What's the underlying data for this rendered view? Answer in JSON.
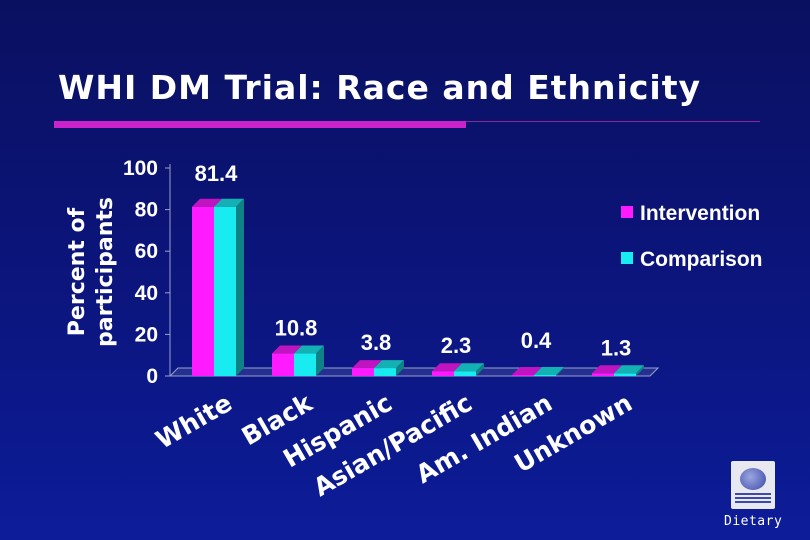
{
  "slide": {
    "title": "WHI DM Trial: Race and Ethnicity",
    "footer": "Dietary"
  },
  "logo": {
    "icon": "whi-logo-icon"
  },
  "colors": {
    "intervention": "#ff1aff",
    "comparison": "#19ecf0",
    "text": "#ffffff",
    "axis": "#9aa0c8"
  },
  "chart_data": {
    "type": "bar",
    "title": "",
    "ylabel": "Percent of participants",
    "xlabel": "",
    "ylim": [
      0,
      100
    ],
    "yticks": [
      0,
      20,
      40,
      60,
      80,
      100
    ],
    "categories": [
      "White",
      "Black",
      "Hispanic",
      "Asian/Pacific",
      "Am. Indian",
      "Unknown"
    ],
    "data_labels": [
      "81.4",
      "10.8",
      "3.8",
      "2.3",
      "0.4",
      "1.3"
    ],
    "series": [
      {
        "name": "Intervention",
        "values": [
          81.4,
          10.8,
          3.8,
          2.3,
          0.4,
          1.3
        ]
      },
      {
        "name": "Comparison",
        "values": [
          81.4,
          10.8,
          3.8,
          2.3,
          0.4,
          1.3
        ]
      }
    ],
    "legend": {
      "placement": "right"
    },
    "grid": false,
    "style": "3d-bars"
  }
}
